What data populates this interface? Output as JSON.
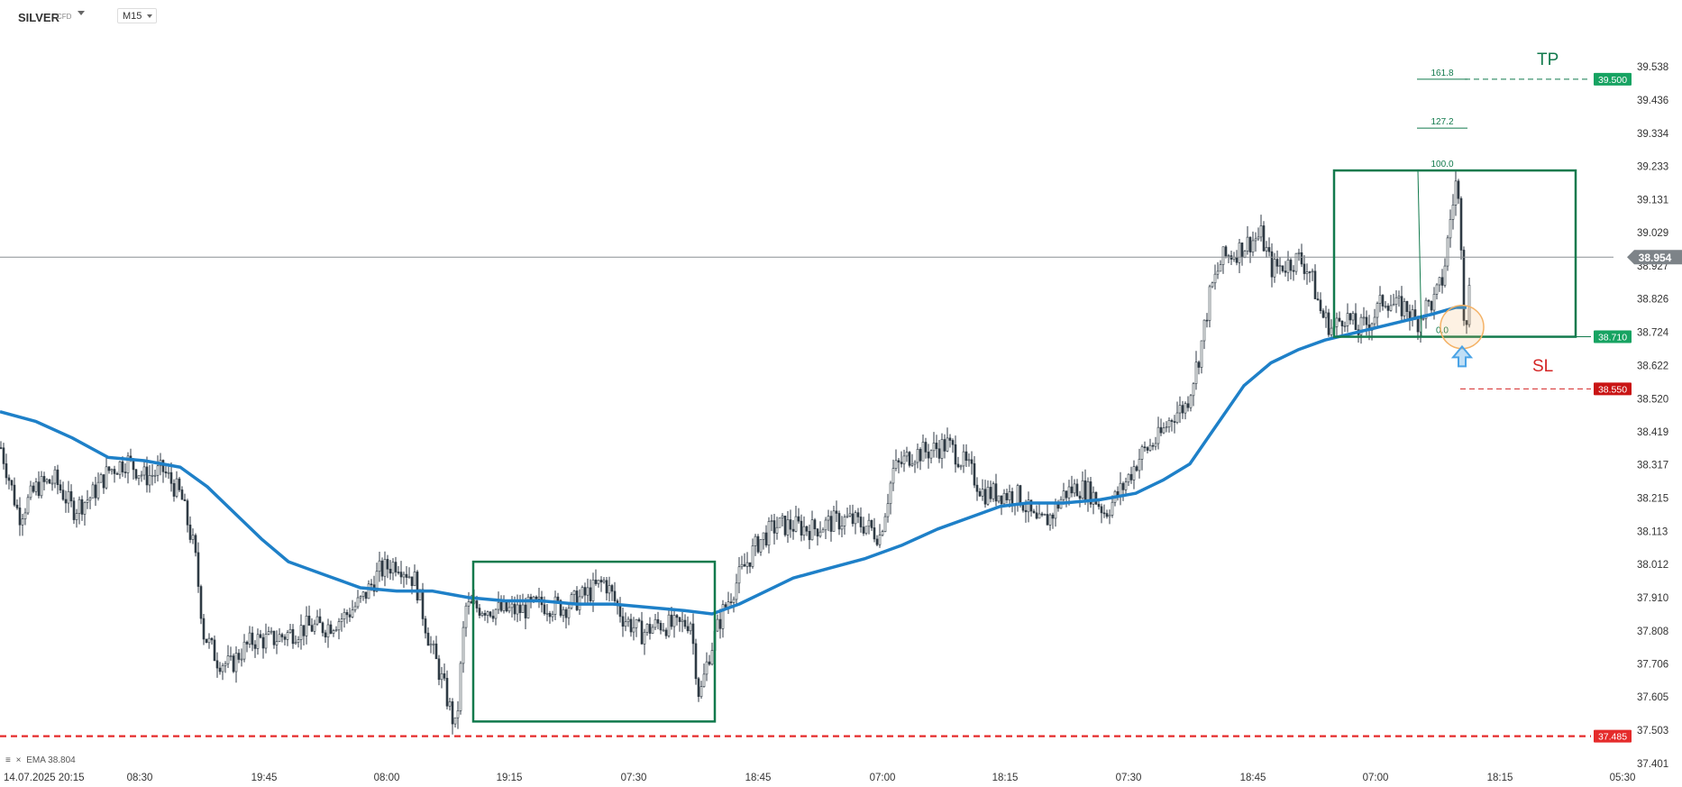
{
  "header": {
    "symbol": "SILVER",
    "badge": "CFD",
    "timeframe": "M15"
  },
  "indicator": {
    "menu_icon": "≡",
    "close_icon": "×",
    "label": "EMA 38.804"
  },
  "colors": {
    "candle": "#2f3a44",
    "ema": "#1e80c8",
    "box": "#127a4d",
    "fib": "#127a4d",
    "tp": "#127a4d",
    "sl": "#d42424",
    "support": "#e52b2b",
    "price_line": "#8a8f94",
    "price_flag": "#7d8388",
    "tp_flag": "#17a362",
    "sl_flag": "#c91414",
    "support_flag": "#e52b2b",
    "entry_circle": "#f4b266",
    "arrow": "#4aa3e6"
  },
  "chart_data": {
    "type": "candlestick",
    "symbol": "SILVER",
    "timeframe": "M15",
    "ylim": [
      37.401,
      39.588
    ],
    "y_ticks": [
      "39.538",
      "39.436",
      "39.334",
      "39.233",
      "39.131",
      "39.029",
      "38.927",
      "38.826",
      "38.724",
      "38.622",
      "38.520",
      "38.419",
      "38.317",
      "38.215",
      "38.113",
      "38.012",
      "37.910",
      "37.808",
      "37.706",
      "37.605",
      "37.503",
      "37.401"
    ],
    "x_ticks": [
      "14.07.2025  20:15",
      "08:30",
      "19:45",
      "08:00",
      "19:15",
      "07:30",
      "18:45",
      "07:00",
      "18:15",
      "07:30",
      "18:45",
      "07:00",
      "18:15",
      "05:30"
    ],
    "price_path": [
      [
        0,
        38.37
      ],
      [
        20,
        38.16
      ],
      [
        40,
        38.25
      ],
      [
        60,
        38.27
      ],
      [
        80,
        38.18
      ],
      [
        100,
        38.22
      ],
      [
        120,
        38.3
      ],
      [
        140,
        38.33
      ],
      [
        160,
        38.28
      ],
      [
        180,
        38.3
      ],
      [
        200,
        38.22
      ],
      [
        215,
        38.05
      ],
      [
        225,
        37.8
      ],
      [
        240,
        37.72
      ],
      [
        255,
        37.7
      ],
      [
        265,
        37.74
      ],
      [
        280,
        37.78
      ],
      [
        300,
        37.78
      ],
      [
        320,
        37.8
      ],
      [
        340,
        37.82
      ],
      [
        360,
        37.82
      ],
      [
        380,
        37.85
      ],
      [
        400,
        37.9
      ],
      [
        420,
        37.99
      ],
      [
        440,
        38.02
      ],
      [
        460,
        37.96
      ],
      [
        475,
        37.78
      ],
      [
        490,
        37.65
      ],
      [
        505,
        37.5
      ],
      [
        515,
        37.88
      ],
      [
        535,
        37.88
      ],
      [
        555,
        37.87
      ],
      [
        575,
        37.87
      ],
      [
        600,
        37.89
      ],
      [
        625,
        37.88
      ],
      [
        650,
        37.92
      ],
      [
        670,
        37.96
      ],
      [
        690,
        37.85
      ],
      [
        710,
        37.8
      ],
      [
        730,
        37.83
      ],
      [
        750,
        37.82
      ],
      [
        765,
        37.84
      ],
      [
        775,
        37.6
      ],
      [
        785,
        37.73
      ],
      [
        800,
        37.86
      ],
      [
        820,
        37.98
      ],
      [
        840,
        38.08
      ],
      [
        860,
        38.13
      ],
      [
        880,
        38.13
      ],
      [
        900,
        38.12
      ],
      [
        920,
        38.14
      ],
      [
        940,
        38.15
      ],
      [
        960,
        38.13
      ],
      [
        975,
        38.1
      ],
      [
        990,
        38.3
      ],
      [
        1010,
        38.35
      ],
      [
        1030,
        38.36
      ],
      [
        1050,
        38.38
      ],
      [
        1060,
        38.35
      ],
      [
        1075,
        38.3
      ],
      [
        1090,
        38.23
      ],
      [
        1110,
        38.23
      ],
      [
        1130,
        38.22
      ],
      [
        1150,
        38.13
      ],
      [
        1165,
        38.16
      ],
      [
        1180,
        38.23
      ],
      [
        1195,
        38.25
      ],
      [
        1210,
        38.23
      ],
      [
        1225,
        38.17
      ],
      [
        1245,
        38.25
      ],
      [
        1265,
        38.35
      ],
      [
        1285,
        38.4
      ],
      [
        1300,
        38.47
      ],
      [
        1315,
        38.5
      ],
      [
        1330,
        38.66
      ],
      [
        1342,
        38.85
      ],
      [
        1355,
        38.95
      ],
      [
        1370,
        38.97
      ],
      [
        1385,
        39.0
      ],
      [
        1398,
        39.02
      ],
      [
        1410,
        38.92
      ],
      [
        1425,
        38.93
      ],
      [
        1440,
        38.95
      ],
      [
        1452,
        38.91
      ],
      [
        1465,
        38.78
      ],
      [
        1478,
        38.73
      ],
      [
        1490,
        38.78
      ],
      [
        1505,
        38.73
      ],
      [
        1520,
        38.76
      ],
      [
        1535,
        38.83
      ],
      [
        1548,
        38.8
      ],
      [
        1560,
        38.8
      ],
      [
        1570,
        38.75
      ],
      [
        1580,
        38.8
      ],
      [
        1590,
        38.82
      ],
      [
        1600,
        38.89
      ],
      [
        1608,
        39.07
      ],
      [
        1614,
        39.18
      ],
      [
        1619,
        39.08
      ],
      [
        1624,
        38.72
      ],
      [
        1630,
        38.88
      ]
    ],
    "ema_path": [
      [
        0,
        38.48
      ],
      [
        40,
        38.45
      ],
      [
        80,
        38.4
      ],
      [
        120,
        38.34
      ],
      [
        160,
        38.33
      ],
      [
        200,
        38.31
      ],
      [
        230,
        38.25
      ],
      [
        260,
        38.17
      ],
      [
        290,
        38.09
      ],
      [
        320,
        38.02
      ],
      [
        360,
        37.98
      ],
      [
        400,
        37.94
      ],
      [
        440,
        37.93
      ],
      [
        480,
        37.93
      ],
      [
        520,
        37.91
      ],
      [
        560,
        37.9
      ],
      [
        600,
        37.9
      ],
      [
        640,
        37.89
      ],
      [
        680,
        37.89
      ],
      [
        720,
        37.88
      ],
      [
        760,
        37.87
      ],
      [
        790,
        37.86
      ],
      [
        820,
        37.89
      ],
      [
        850,
        37.93
      ],
      [
        880,
        37.97
      ],
      [
        920,
        38.0
      ],
      [
        960,
        38.03
      ],
      [
        1000,
        38.07
      ],
      [
        1040,
        38.12
      ],
      [
        1080,
        38.16
      ],
      [
        1110,
        38.19
      ],
      [
        1140,
        38.2
      ],
      [
        1180,
        38.2
      ],
      [
        1220,
        38.21
      ],
      [
        1260,
        38.23
      ],
      [
        1290,
        38.27
      ],
      [
        1320,
        38.32
      ],
      [
        1340,
        38.4
      ],
      [
        1360,
        38.48
      ],
      [
        1380,
        38.56
      ],
      [
        1410,
        38.63
      ],
      [
        1440,
        38.67
      ],
      [
        1470,
        38.7
      ],
      [
        1500,
        38.72
      ],
      [
        1530,
        38.74
      ],
      [
        1560,
        38.76
      ],
      [
        1590,
        38.78
      ],
      [
        1615,
        38.8
      ],
      [
        1627,
        38.8
      ]
    ],
    "last_price": {
      "value": 38.954,
      "label": "38.954"
    },
    "horizontal_lines": [
      {
        "name": "TP",
        "value": 39.5,
        "label": "39.500",
        "style": "dashed"
      },
      {
        "name": "SL",
        "value": 38.55,
        "label": "38.550",
        "style": "dashed"
      },
      {
        "value": 37.485,
        "label": "37.485",
        "style": "dashed"
      },
      {
        "value": 38.71,
        "label": "38.710",
        "style": "solid"
      }
    ],
    "fibonacci_levels": [
      {
        "level": "161.8",
        "value": 39.5
      },
      {
        "level": "127.2",
        "value": 39.35
      },
      {
        "level": "100.0",
        "value": 39.22
      },
      {
        "level": "0.0",
        "value": 38.71
      }
    ],
    "annotations": [
      {
        "text": "TP",
        "near_value": 39.56
      },
      {
        "text": "SL",
        "near_value": 38.62
      }
    ],
    "rectangles": [
      {
        "x_from": 525,
        "x_to": 793,
        "y_low": 37.53,
        "y_high": 38.02
      },
      {
        "x_from": 1480,
        "x_to": 1748,
        "y_low": 38.71,
        "y_high": 39.22
      }
    ],
    "ema": {
      "period_label": "EMA",
      "value": 38.804
    }
  }
}
